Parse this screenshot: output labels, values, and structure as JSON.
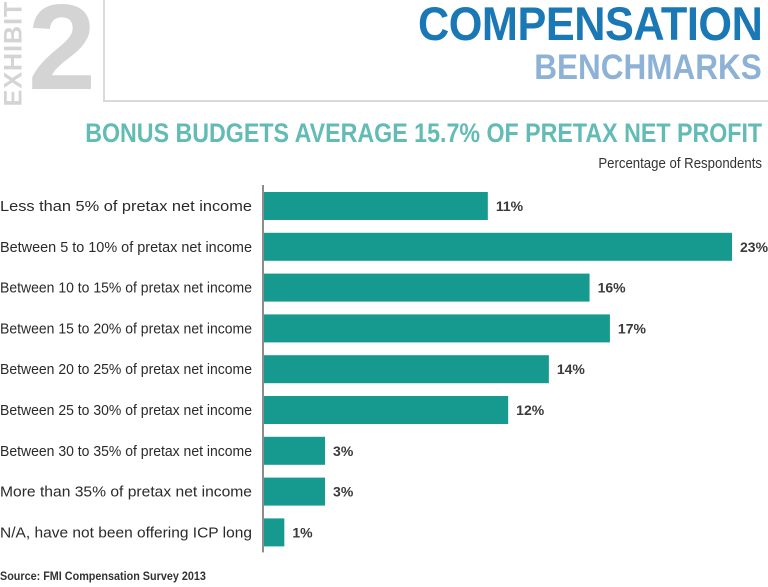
{
  "header": {
    "exhibit_label": "EXHIBIT",
    "exhibit_number": "2",
    "title": "COMPENSATION",
    "subtitle": "BENCHMARKS"
  },
  "colors": {
    "bar": "#169a90",
    "axis": "#8c8c8c",
    "title_blue": "#1a78b4",
    "subtitle_blue": "#8eb2d6",
    "chart_title_teal": "#62bcb5",
    "exhibit_gray": "#d4d4d4"
  },
  "source": "Source: FMI Compensation Survey 2013",
  "chart_data": {
    "type": "bar",
    "orientation": "horizontal",
    "title": "BONUS BUDGETS AVERAGE 15.7% OF PRETAX NET PROFIT",
    "subtitle": "Percentage of Respondents",
    "categories": [
      "Less than 5% of pretax net income",
      "Between 5 to 10% of pretax net income",
      "Between 10 to 15% of pretax net income",
      "Between 15 to 20% of pretax net income",
      "Between 20 to 25% of pretax net income",
      "Between 25 to 30% of pretax net income",
      "Between 30 to 35% of pretax net income",
      "More than 35% of pretax net income",
      "N/A, have not been offering ICP long"
    ],
    "values": [
      11,
      23,
      16,
      17,
      14,
      12,
      3,
      3,
      1
    ],
    "value_labels": [
      "11%",
      "23%",
      "16%",
      "17%",
      "14%",
      "12%",
      "3%",
      "3%",
      "1%"
    ],
    "xlim": [
      0,
      23
    ],
    "grid": false,
    "legend": "none"
  }
}
